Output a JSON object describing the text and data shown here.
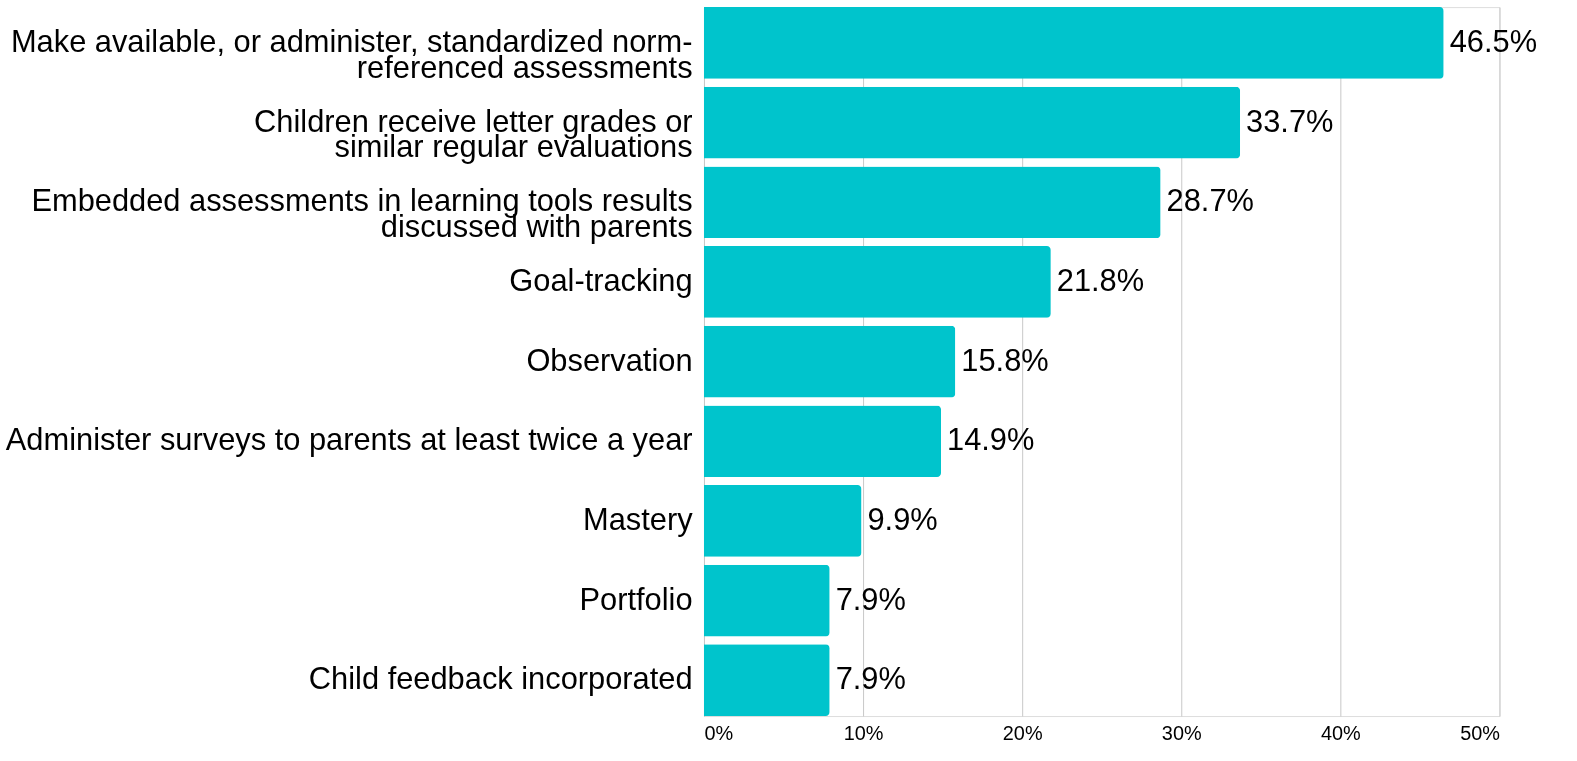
{
  "chart_data": {
    "type": "bar",
    "orientation": "horizontal",
    "categories": [
      "Make available, or administer, standardized norm-\nreferenced assessments",
      "Children receive letter grades or\nsimilar regular evaluations",
      "Embedded assessments in learning tools results\ndiscussed with parents",
      "Goal-tracking",
      "Observation",
      "Administer surveys to parents at least twice a year",
      "Mastery",
      "Portfolio",
      "Child feedback incorporated"
    ],
    "values": [
      46.5,
      33.7,
      28.7,
      21.8,
      15.8,
      14.9,
      9.9,
      7.9,
      7.9
    ],
    "value_labels": [
      "46.5%",
      "33.7%",
      "28.7%",
      "21.8%",
      "15.8%",
      "14.9%",
      "9.9%",
      "7.9%",
      "7.9%"
    ],
    "color": "#00c4cc",
    "xlim": [
      0,
      50
    ],
    "xticks": [
      {
        "value": 0,
        "label": "0%"
      },
      {
        "value": 10,
        "label": "10%"
      },
      {
        "value": 20,
        "label": "20%"
      },
      {
        "value": 30,
        "label": "30%"
      },
      {
        "value": 40,
        "label": "40%"
      },
      {
        "value": 50,
        "label": "50%"
      }
    ],
    "grid": "x"
  }
}
